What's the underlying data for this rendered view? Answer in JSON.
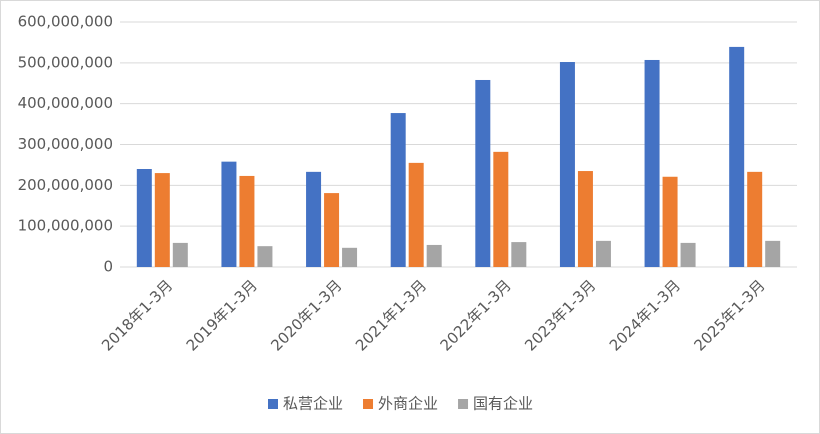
{
  "chart_data": {
    "type": "bar",
    "categories": [
      "2018年1-3月",
      "2019年1-3月",
      "2020年1-3月",
      "2021年1-3月",
      "2022年1-3月",
      "2023年1-3月",
      "2024年1-3月",
      "2025年1-3月"
    ],
    "series": [
      {
        "name": "私营企业",
        "color": "#4472c4",
        "values": [
          240000000,
          258000000,
          233000000,
          377000000,
          458000000,
          502000000,
          507000000,
          539000000
        ]
      },
      {
        "name": "外商企业",
        "color": "#ed7d31",
        "values": [
          230000000,
          223000000,
          181000000,
          255000000,
          282000000,
          235000000,
          221000000,
          233000000
        ]
      },
      {
        "name": "国有企业",
        "color": "#a5a5a5",
        "values": [
          59000000,
          51000000,
          47000000,
          54000000,
          61000000,
          64000000,
          59000000,
          64000000
        ]
      }
    ],
    "ylim": [
      0,
      600000000
    ],
    "yticks": [
      0,
      {
        "value": 100000000,
        "label": "100,000,000"
      },
      {
        "value": 200000000,
        "label": "200,000,000"
      },
      {
        "value": 300000000,
        "label": "300,000,000"
      },
      {
        "value": 400000000,
        "label": "400,000,000"
      },
      {
        "value": 500000000,
        "label": "500,000,000"
      },
      {
        "value": 600000000,
        "label": "600,000,000"
      }
    ],
    "grid": true,
    "legend": "bottom"
  }
}
